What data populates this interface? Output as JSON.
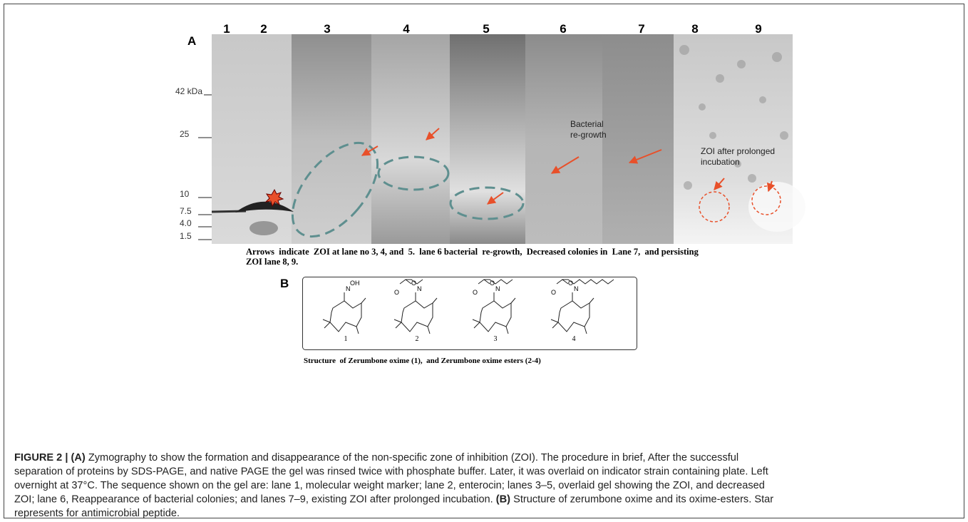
{
  "panel_a": {
    "label": "A",
    "lanes": [
      "1",
      "2",
      "3",
      "4",
      "5",
      "6",
      "7",
      "8",
      "9"
    ],
    "markers": [
      "42 kDa",
      "25",
      "10",
      "7.5",
      "4.0",
      "1.5"
    ],
    "annotations": [
      [
        "Bacterial",
        "re-growth"
      ],
      [
        "ZOI after prolonged",
        "incubation"
      ]
    ],
    "caption": [
      "Arrows  indicate  ZOI at lane no 3, 4, and  5.  lane 6 bacterial  re-growth,  Decreased colonies in  Lane 7,  and persisting",
      "ZOI lane 8, 9."
    ]
  },
  "panel_b": {
    "label": "B",
    "structures": [
      {
        "number": "1",
        "atoms": [
          "N",
          "OH"
        ]
      },
      {
        "number": "2",
        "atoms": [
          "N",
          "O",
          "O"
        ]
      },
      {
        "number": "3",
        "atoms": [
          "N",
          "O",
          "O"
        ]
      },
      {
        "number": "4",
        "atoms": [
          "N",
          "O",
          "O"
        ]
      }
    ],
    "caption": "Structure  of Zerumbone oxime (1),  and Zerumbone oxime esters (2-4)"
  },
  "caption": {
    "lines": [
      [
        {
          "text": "FIGURE 2 | (A)",
          "bold": true
        },
        {
          "text": " Zymography to show the formation and disappearance of the non-specific zone of inhibition (ZOI). The procedure in brief, After the successful"
        }
      ],
      [
        {
          "text": "separation of proteins by SDS-PAGE, and native PAGE the gel was rinsed twice with phosphate buffer. Later, it was overlaid on indicator strain containing plate. Left"
        }
      ],
      [
        {
          "text": "overnight at 37°C. The sequence shown on the gel are: lane 1, molecular weight marker; lane 2, enterocin; lanes 3–5, overlaid gel showing the ZOI, and decreased"
        }
      ],
      [
        {
          "text": "ZOI; lane 6, Reappearance of bacterial colonies; and lanes 7–9, existing ZOI after prolonged incubation. "
        },
        {
          "text": "(B)",
          "bold": true
        },
        {
          "text": " Structure of zerumbone oxime and its oxime-esters. Star"
        }
      ],
      [
        {
          "text": "represents for antimicrobial peptide."
        }
      ]
    ]
  }
}
